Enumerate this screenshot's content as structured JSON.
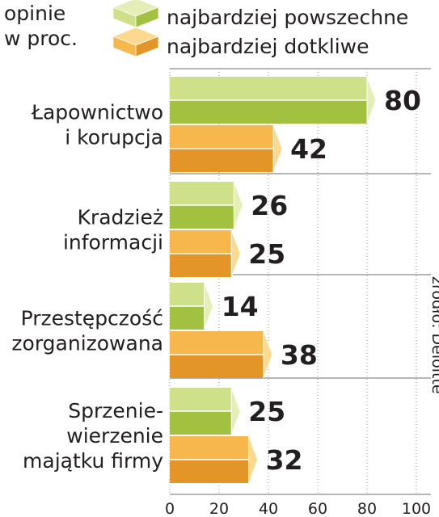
{
  "unit_label": [
    "opinie",
    "w proc."
  ],
  "source": "źródło: Deloitte",
  "colors": {
    "green_top": "#cfe08a",
    "green_bottom": "#a3c140",
    "green_tip": "#e6eeb8",
    "orange_top": "#f6b84d",
    "orange_bottom": "#e39527",
    "orange_tip": "#fbd98f"
  },
  "chart_data": {
    "type": "bar",
    "orientation": "horizontal",
    "categories": [
      [
        "Łapownictwo",
        "i korupcja"
      ],
      [
        "Kradzież",
        "informacji"
      ],
      [
        "Przestępczość",
        "zorganizowana"
      ],
      [
        "Sprzenie-",
        "wierzenie",
        "majątku firmy"
      ]
    ],
    "series": [
      {
        "name": "najbardziej powszechne",
        "color": "green",
        "values": [
          80,
          26,
          14,
          25
        ]
      },
      {
        "name": "najbardziej dotkliwe",
        "color": "orange",
        "values": [
          42,
          25,
          38,
          32
        ]
      }
    ],
    "xlim": [
      0,
      100
    ],
    "xticks": [
      "0",
      "20",
      "40",
      "60",
      "80",
      "100"
    ],
    "grid": true,
    "legend_position": "top"
  }
}
